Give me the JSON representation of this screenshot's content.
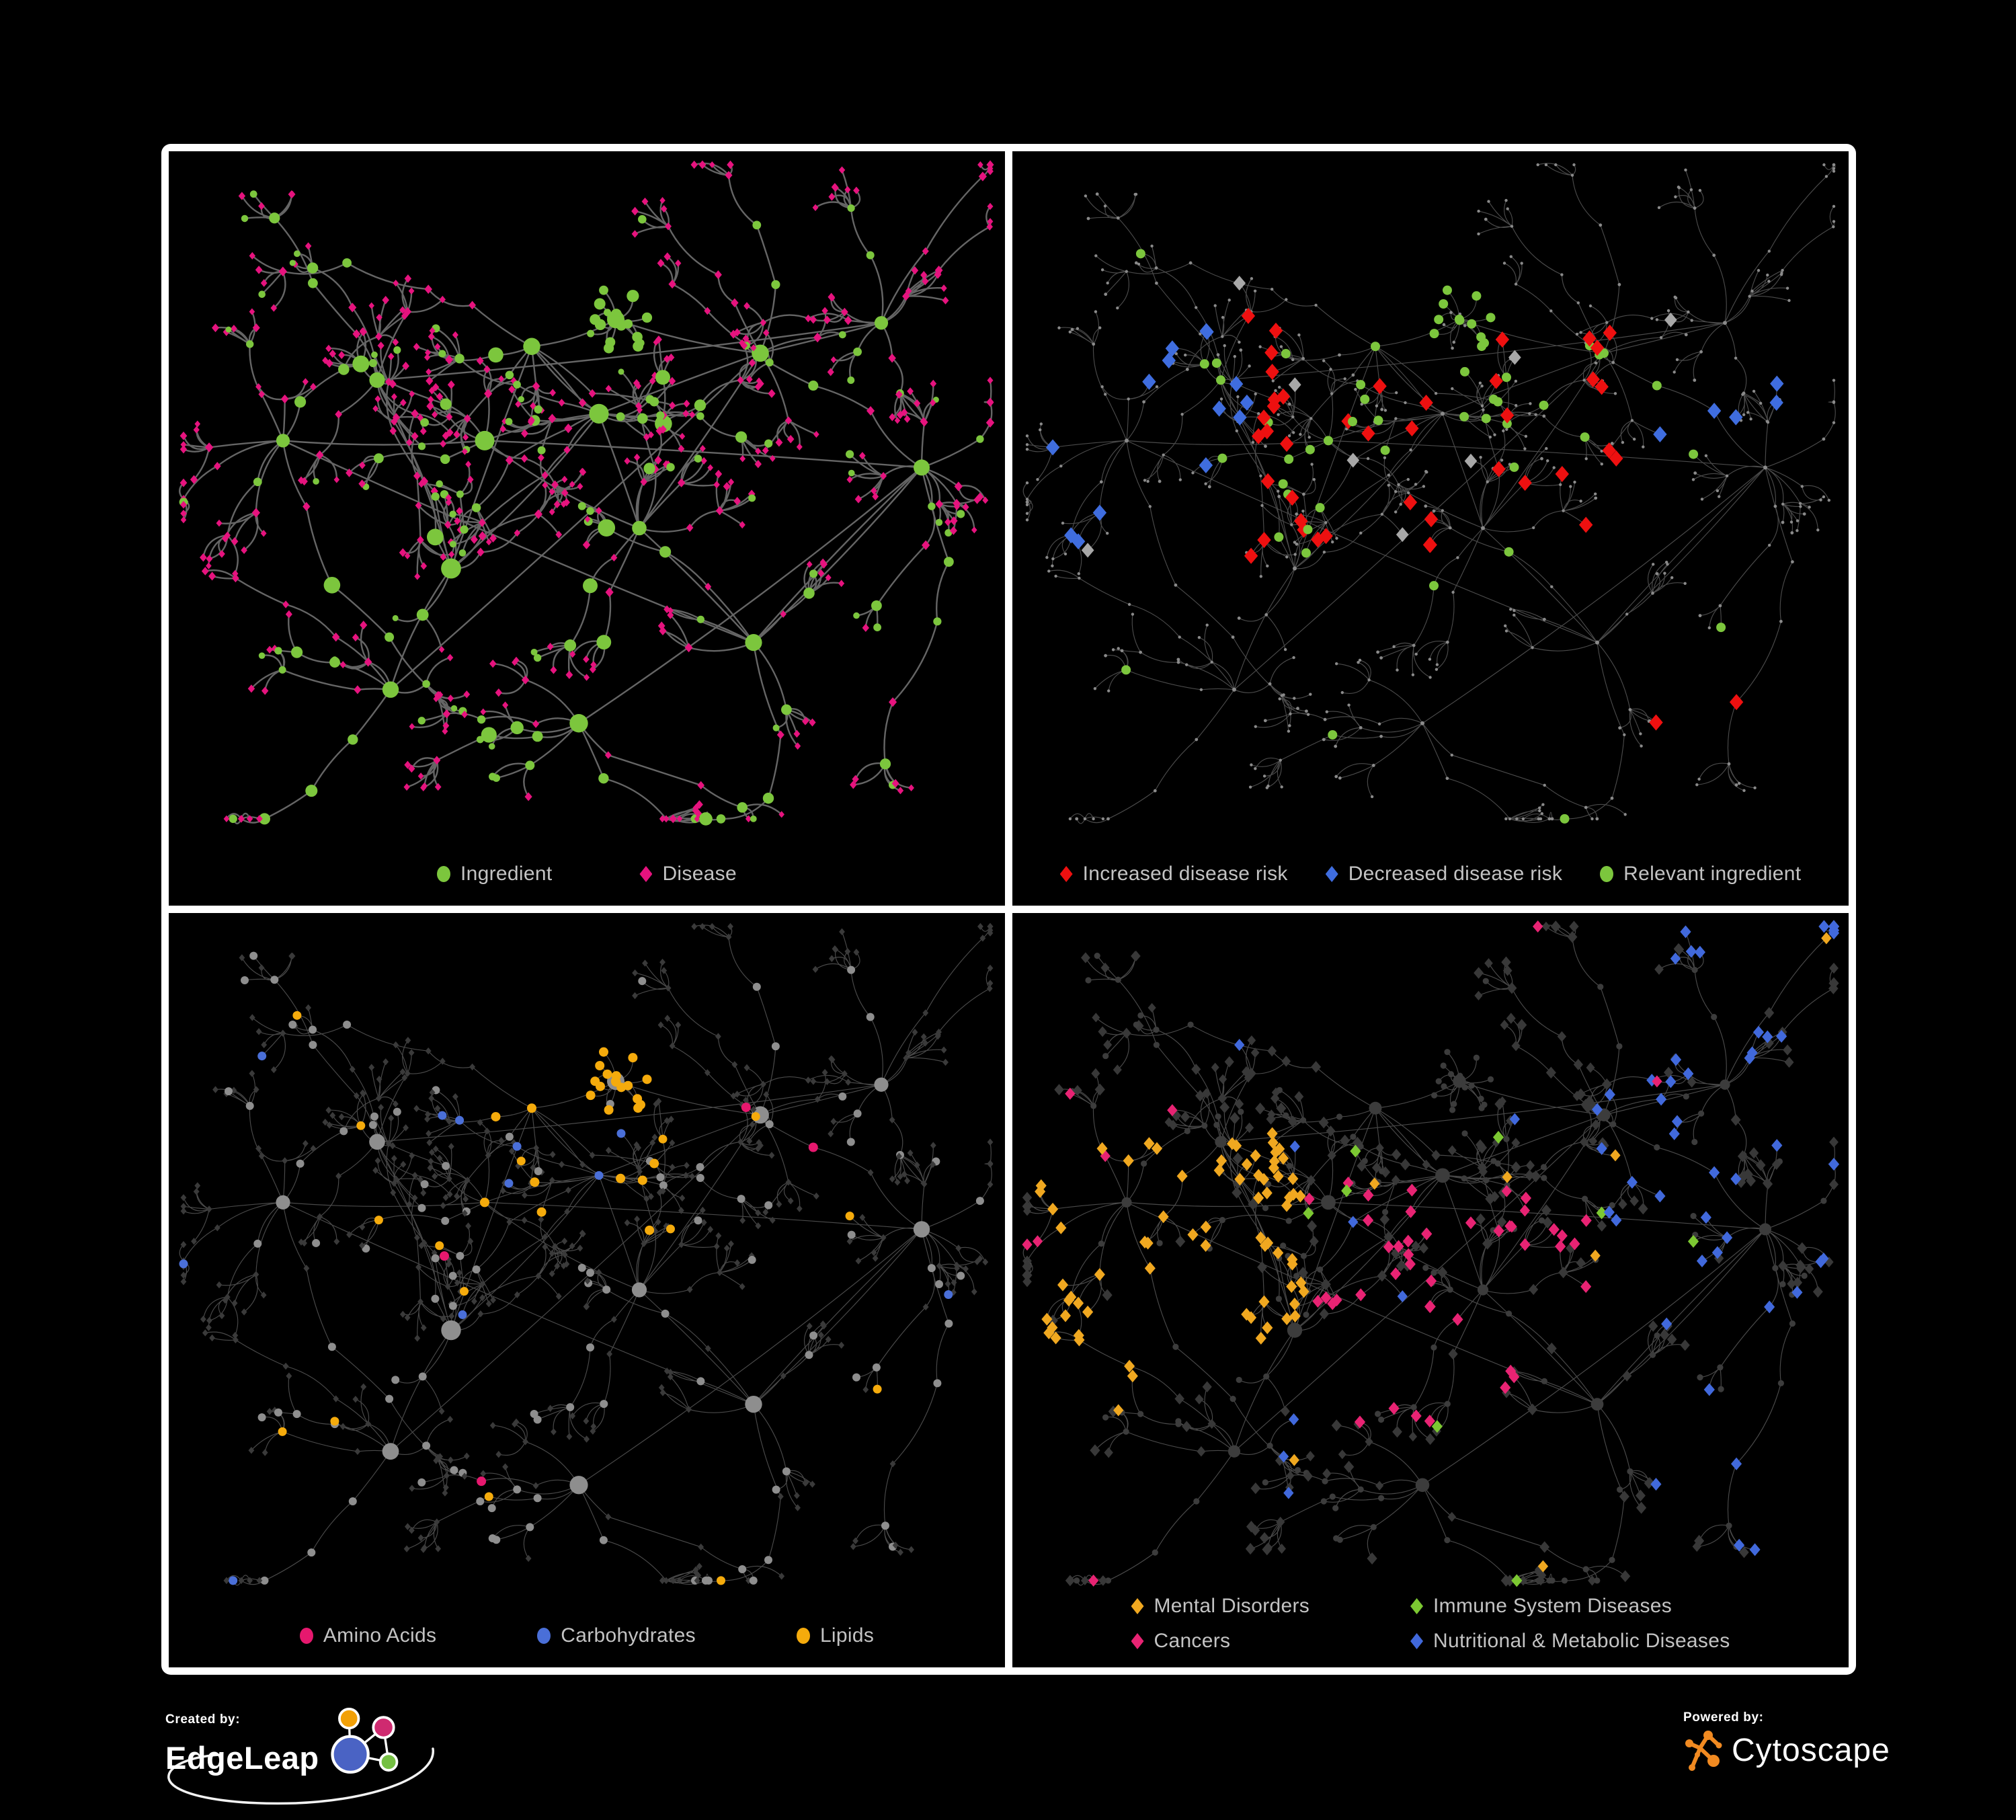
{
  "figure": {
    "background": "#000000",
    "frame_color": "#ffffff",
    "legend_text_color": "#c3c3c3"
  },
  "panels": [
    {
      "title": "ingredient-disease-network",
      "legend": [
        {
          "label": "Ingredient",
          "shape": "circle",
          "color": "#7cc63d"
        },
        {
          "label": "Disease",
          "shape": "diamond",
          "color": "#e6137e"
        }
      ],
      "palette": {
        "edge": "#6e6e6e",
        "ingredient": "#7cc63d",
        "disease": "#e6137e"
      }
    },
    {
      "title": "disease-risk-network",
      "legend": [
        {
          "label": "Increased disease risk",
          "shape": "diamond",
          "color": "#ee1010"
        },
        {
          "label": "Decreased disease risk",
          "shape": "diamond",
          "color": "#3f6ddf"
        },
        {
          "label": "Relevant ingredient",
          "shape": "circle",
          "color": "#7cc63d"
        }
      ],
      "palette": {
        "edge": "#585858",
        "node": "#8a8a8a",
        "increased_risk": "#ee1010",
        "decreased_risk": "#3f6ddf",
        "other_disease": "#a8a8a8",
        "relevant_ingredient": "#7cc63d"
      }
    },
    {
      "title": "nutrient-class-network",
      "legend": [
        {
          "label": "Amino Acids",
          "shape": "circle",
          "color": "#e6186e"
        },
        {
          "label": "Carbohydrates",
          "shape": "circle",
          "color": "#4a6fd8"
        },
        {
          "label": "Lipids",
          "shape": "circle",
          "color": "#f5ab0c"
        }
      ],
      "palette": {
        "edge": "#585858",
        "disease": "#3a3a3a",
        "ingredient": "#8e8e8e",
        "amino_acids": "#e6186e",
        "carbohydrates": "#4a6fd8",
        "lipids": "#f5ab0c"
      }
    },
    {
      "title": "disease-class-network",
      "legend": [
        {
          "label": "Mental Disorders",
          "shape": "diamond",
          "color": "#f0a820"
        },
        {
          "label": "Immune System Diseases",
          "shape": "diamond",
          "color": "#7cc832"
        },
        {
          "label": "Cancers",
          "shape": "diamond",
          "color": "#e82373"
        },
        {
          "label": "Nutritional & Metabolic Diseases",
          "shape": "diamond",
          "color": "#4169dc"
        }
      ],
      "palette": {
        "edge": "#585858",
        "ingredient": "#3c3c3c",
        "disease": "#383838",
        "mental_disorders": "#f0a820",
        "immune_system_diseases": "#7cc832",
        "cancers": "#e82373",
        "nutritional_metabolic_diseases": "#4169dc"
      }
    }
  ],
  "footer": {
    "created_by": {
      "label": "Created by:",
      "brand": "EdgeLeap",
      "logo_colors": {
        "blue": "#4a63c4",
        "orange": "#f2a007",
        "pink": "#cf2a70",
        "green": "#75c043"
      }
    },
    "powered_by": {
      "label": "Powered by:",
      "brand": "Cytoscape",
      "logo_color": "#f18a21"
    }
  }
}
